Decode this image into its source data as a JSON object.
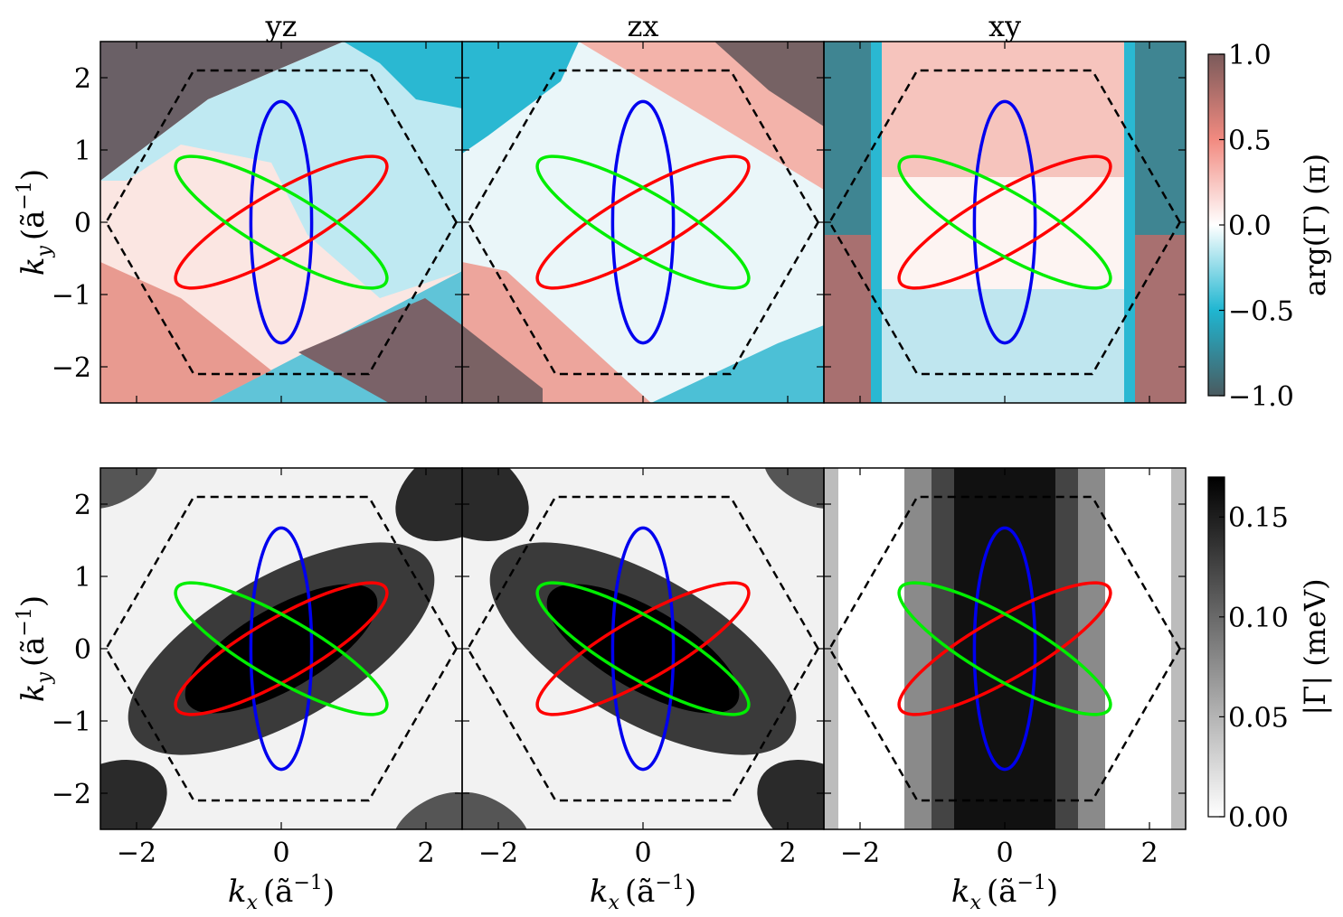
{
  "panel_titles": [
    "yz",
    "zx",
    "xy"
  ],
  "axes": {
    "xlabel": {
      "var": "k",
      "sub": "x",
      "units": "(ã",
      "sup": "−1",
      "close": ")"
    },
    "ylabel": {
      "var": "k",
      "sub": "y",
      "units": "(ã",
      "sup": "−1",
      "close": ")"
    }
  },
  "colorbars": [
    {
      "label": "arg(Γ) (π)",
      "ticks": [
        "1.0",
        "0.5",
        "0.0",
        "−0.5",
        "−1.0"
      ]
    },
    {
      "label": "|Γ| (meV)",
      "ticks": [
        "0.15",
        "0.10",
        "0.05",
        "0.00"
      ]
    }
  ],
  "colors": {
    "blue_contour": "#0000ee",
    "red_contour": "#ff0000",
    "green_contour": "#00ee00",
    "bz_boundary": "#000000",
    "phase_cmap": [
      "#4a5a5f",
      "#1fb6d1",
      "#ffffff",
      "#f28a80",
      "#7a5a5a"
    ],
    "magnitude_cmap": [
      "#ffffff",
      "#000000"
    ]
  },
  "chart_data": [
    {
      "type": "heatmap",
      "row": "arg(Γ)",
      "title": "yz",
      "x_range": [
        -2.5,
        2.5
      ],
      "y_range": [
        -2.5,
        2.5
      ],
      "xticks": [
        -2,
        0,
        2
      ],
      "yticks": [
        -2,
        -1,
        0,
        1,
        2
      ],
      "color_range": [
        -1.0,
        1.0
      ],
      "units": "π"
    },
    {
      "type": "heatmap",
      "row": "arg(Γ)",
      "title": "zx",
      "x_range": [
        -2.5,
        2.5
      ],
      "y_range": [
        -2.5,
        2.5
      ],
      "color_range": [
        -1.0,
        1.0
      ],
      "units": "π"
    },
    {
      "type": "heatmap",
      "row": "arg(Γ)",
      "title": "xy",
      "x_range": [
        -2.5,
        2.5
      ],
      "y_range": [
        -2.5,
        2.5
      ],
      "color_range": [
        -1.0,
        1.0
      ],
      "units": "π"
    },
    {
      "type": "heatmap",
      "row": "|Γ|",
      "title": "yz",
      "x_range": [
        -2.5,
        2.5
      ],
      "y_range": [
        -2.5,
        2.5
      ],
      "color_range": [
        0.0,
        0.17
      ],
      "units": "meV"
    },
    {
      "type": "heatmap",
      "row": "|Γ|",
      "title": "zx",
      "x_range": [
        -2.5,
        2.5
      ],
      "y_range": [
        -2.5,
        2.5
      ],
      "color_range": [
        0.0,
        0.17
      ],
      "units": "meV"
    },
    {
      "type": "heatmap",
      "row": "|Γ|",
      "title": "xy",
      "x_range": [
        -2.5,
        2.5
      ],
      "y_range": [
        -2.5,
        2.5
      ],
      "color_range": [
        0.0,
        0.17
      ],
      "units": "meV"
    }
  ],
  "overlays": {
    "hexagon_vertices": [
      [
        2.42,
        0
      ],
      [
        1.21,
        2.1
      ],
      [
        -1.21,
        2.1
      ],
      [
        -2.42,
        0
      ],
      [
        -1.21,
        -2.1
      ],
      [
        1.21,
        -2.1
      ]
    ],
    "ellipses": [
      {
        "color": "blue",
        "semi_major": 1.67,
        "semi_minor": 0.42,
        "angle_deg": 90
      },
      {
        "color": "red",
        "semi_major": 1.67,
        "semi_minor": 0.42,
        "angle_deg": 30
      },
      {
        "color": "green",
        "semi_major": 1.67,
        "semi_minor": 0.42,
        "angle_deg": -30
      }
    ]
  }
}
